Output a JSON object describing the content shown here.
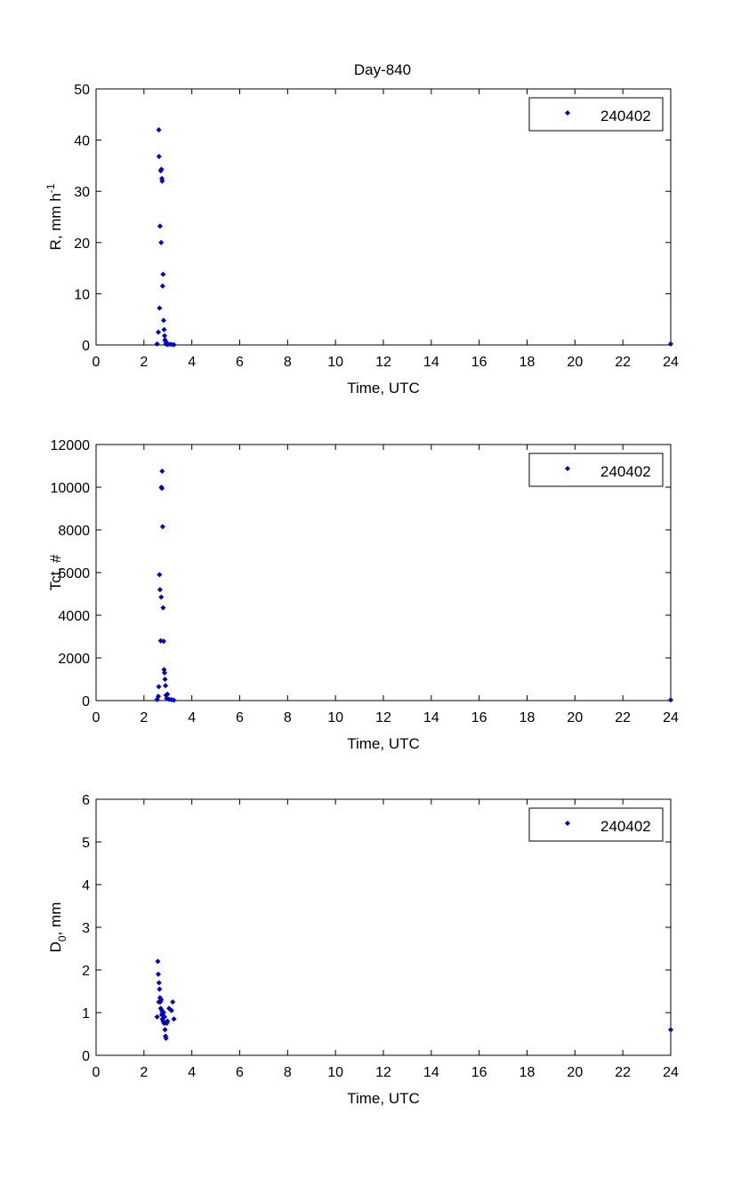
{
  "figure_title": "Day-840",
  "colors": {
    "marker": "#0000cc",
    "axes": "#000000",
    "background": "#ffffff"
  },
  "chart_data": [
    {
      "type": "scatter",
      "title": "Day-840",
      "xlabel": "Time, UTC",
      "ylabel_parts": {
        "main": "R, mm h",
        "sup": "-1"
      },
      "xlim": [
        0,
        24
      ],
      "ylim": [
        0,
        50
      ],
      "xticks": [
        0,
        2,
        4,
        6,
        8,
        10,
        12,
        14,
        16,
        18,
        20,
        22,
        24
      ],
      "yticks": [
        0,
        10,
        20,
        30,
        40,
        50
      ],
      "legend": {
        "position": "top-right",
        "entries": [
          "240402"
        ]
      },
      "series": [
        {
          "name": "240402",
          "x": [
            2.55,
            2.6,
            2.62,
            2.63,
            2.65,
            2.67,
            2.7,
            2.72,
            2.73,
            2.75,
            2.76,
            2.78,
            2.8,
            2.82,
            2.84,
            2.86,
            2.88,
            2.9,
            2.92,
            2.95,
            2.98,
            3.05,
            3.15,
            3.25,
            24.0
          ],
          "y": [
            0.2,
            2.5,
            42.0,
            36.8,
            7.2,
            23.2,
            34.0,
            20.0,
            34.3,
            32.5,
            32.0,
            11.5,
            13.8,
            4.8,
            3.0,
            1.8,
            1.0,
            0.7,
            0.2,
            0.3,
            0.1,
            0.15,
            0.1,
            0.05,
            0.2
          ]
        }
      ]
    },
    {
      "type": "scatter",
      "title": "",
      "xlabel": "Time, UTC",
      "ylabel_parts": {
        "main": "Tct, #",
        "sup": ""
      },
      "xlim": [
        0,
        24
      ],
      "ylim": [
        0,
        12000
      ],
      "xticks": [
        0,
        2,
        4,
        6,
        8,
        10,
        12,
        14,
        16,
        18,
        20,
        22,
        24
      ],
      "yticks": [
        0,
        2000,
        4000,
        6000,
        8000,
        10000,
        12000
      ],
      "legend": {
        "position": "top-right",
        "entries": [
          "240402"
        ]
      },
      "series": [
        {
          "name": "240402",
          "x": [
            2.55,
            2.6,
            2.62,
            2.65,
            2.67,
            2.7,
            2.72,
            2.73,
            2.75,
            2.76,
            2.78,
            2.8,
            2.82,
            2.84,
            2.86,
            2.88,
            2.9,
            2.92,
            2.95,
            2.98,
            3.05,
            3.15,
            3.25,
            24.0
          ],
          "y": [
            50,
            200,
            650,
            5900,
            5200,
            2800,
            4850,
            10000,
            9950,
            10750,
            8150,
            4350,
            2780,
            1450,
            1300,
            1000,
            700,
            250,
            100,
            300,
            60,
            40,
            20,
            30
          ]
        }
      ]
    },
    {
      "type": "scatter",
      "title": "",
      "xlabel": "Time, UTC",
      "ylabel_parts": {
        "main": "D",
        "sub": "0",
        "rest": ", mm"
      },
      "xlim": [
        0,
        24
      ],
      "ylim": [
        0,
        6
      ],
      "xticks": [
        0,
        2,
        4,
        6,
        8,
        10,
        12,
        14,
        16,
        18,
        20,
        22,
        24
      ],
      "yticks": [
        0,
        1,
        2,
        3,
        4,
        5,
        6
      ],
      "legend": {
        "position": "top-right",
        "entries": [
          "240402"
        ]
      },
      "series": [
        {
          "name": "240402",
          "x": [
            2.55,
            2.58,
            2.6,
            2.62,
            2.63,
            2.65,
            2.67,
            2.68,
            2.7,
            2.72,
            2.74,
            2.75,
            2.77,
            2.78,
            2.8,
            2.82,
            2.84,
            2.86,
            2.88,
            2.9,
            2.92,
            2.95,
            2.98,
            3.05,
            3.15,
            3.2,
            3.25,
            24.0
          ],
          "y": [
            0.9,
            2.2,
            1.9,
            1.25,
            1.7,
            1.55,
            1.35,
            1.25,
            1.1,
            1.3,
            0.95,
            1.05,
            0.85,
            1.0,
            0.8,
            1.0,
            0.75,
            0.9,
            0.6,
            0.45,
            0.4,
            0.75,
            0.8,
            1.1,
            1.05,
            1.25,
            0.85,
            0.6
          ]
        }
      ]
    }
  ]
}
